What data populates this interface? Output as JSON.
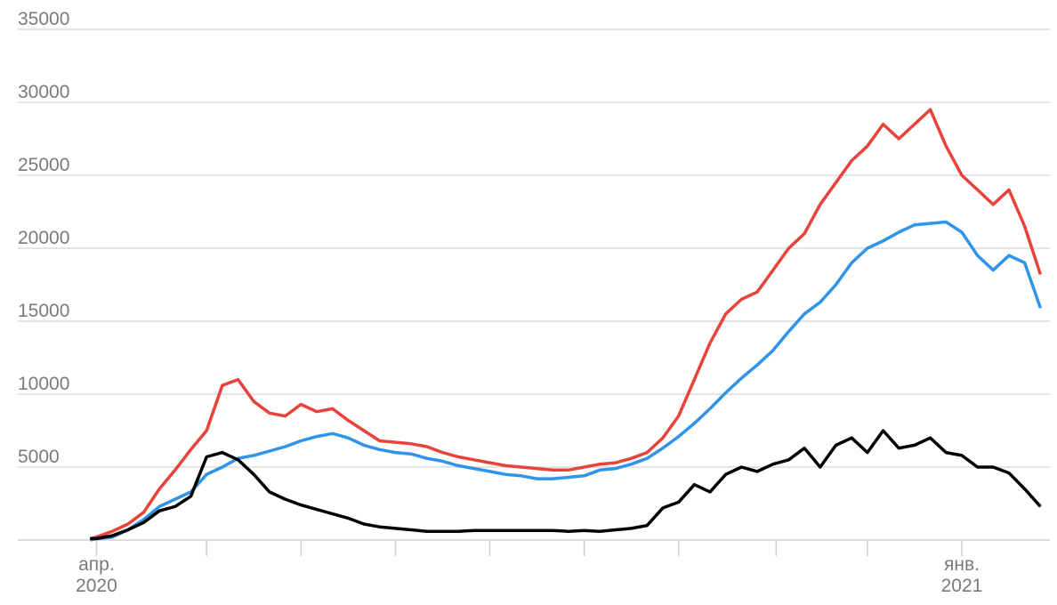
{
  "chart_data": {
    "type": "line",
    "x": [
      -2,
      0,
      5,
      10,
      15,
      20,
      25,
      30,
      35,
      40,
      45,
      50,
      55,
      60,
      65,
      70,
      75,
      80,
      85,
      90,
      95,
      100,
      105,
      110,
      115,
      120,
      125,
      130,
      135,
      140,
      145,
      150,
      155,
      160,
      165,
      170,
      175,
      180,
      185,
      190,
      195,
      200,
      205,
      210,
      215,
      220,
      225,
      230,
      235,
      240,
      245,
      250,
      255,
      260,
      265,
      270,
      275,
      280,
      285,
      290,
      295,
      300
    ],
    "series": [
      {
        "color": "#e8433a",
        "values": [
          100,
          200,
          600,
          1100,
          1900,
          3500,
          4800,
          6200,
          7500,
          10600,
          11000,
          9500,
          8700,
          8500,
          9300,
          8800,
          9000,
          8200,
          7500,
          6800,
          6700,
          6600,
          6400,
          6000,
          5700,
          5500,
          5300,
          5100,
          5000,
          4900,
          4800,
          4800,
          5000,
          5200,
          5300,
          5600,
          6000,
          7000,
          8500,
          11000,
          13500,
          15500,
          16500,
          17000,
          18500,
          20000,
          21000,
          23000,
          24500,
          26000,
          27000,
          28500,
          27500,
          28500,
          29500,
          27000,
          25000,
          24000,
          23000,
          24000,
          21500,
          18200
        ]
      },
      {
        "color": "#2f93e8",
        "values": [
          0,
          100,
          200,
          700,
          1400,
          2300,
          2800,
          3300,
          4500,
          5000,
          5600,
          5800,
          6100,
          6400,
          6800,
          7100,
          7300,
          7000,
          6500,
          6200,
          6000,
          5900,
          5600,
          5400,
          5100,
          4900,
          4700,
          4500,
          4400,
          4200,
          4200,
          4300,
          4400,
          4800,
          4900,
          5200,
          5600,
          6300,
          7100,
          8000,
          9000,
          10100,
          11100,
          12000,
          13000,
          14300,
          15500,
          16300,
          17500,
          19000,
          20000,
          20500,
          21100,
          21600,
          21700,
          21800,
          21100,
          19500,
          18500,
          19500,
          19000,
          15900
        ]
      },
      {
        "color": "#000000",
        "values": [
          100,
          100,
          300,
          700,
          1200,
          2000,
          2300,
          3000,
          5700,
          6000,
          5500,
          4500,
          3300,
          2800,
          2400,
          2100,
          1800,
          1500,
          1100,
          900,
          800,
          700,
          600,
          600,
          600,
          650,
          650,
          650,
          650,
          650,
          650,
          600,
          650,
          600,
          700,
          800,
          1000,
          2200,
          2600,
          3800,
          3300,
          4500,
          5000,
          4700,
          5200,
          5500,
          6300,
          5000,
          6500,
          7000,
          6000,
          7500,
          6300,
          6500,
          7000,
          6000,
          5800,
          5000,
          5000,
          4600,
          3500,
          2300
        ]
      }
    ],
    "xlim": [
      -25,
      303
    ],
    "xticks": [
      {
        "value": 0,
        "label": "апр.",
        "sublabel": "2020"
      },
      {
        "value": 35,
        "label": null
      },
      {
        "value": 65,
        "label": null
      },
      {
        "value": 95,
        "label": null
      },
      {
        "value": 125,
        "label": null
      },
      {
        "value": 155,
        "label": null
      },
      {
        "value": 185,
        "label": null
      },
      {
        "value": 216,
        "label": null
      },
      {
        "value": 245,
        "label": null
      },
      {
        "value": 275,
        "label": "янв.",
        "sublabel": "2021"
      }
    ],
    "ylim": [
      0,
      35000
    ],
    "yticks": [
      5000,
      10000,
      15000,
      20000,
      25000,
      30000,
      35000
    ],
    "grid": true
  }
}
